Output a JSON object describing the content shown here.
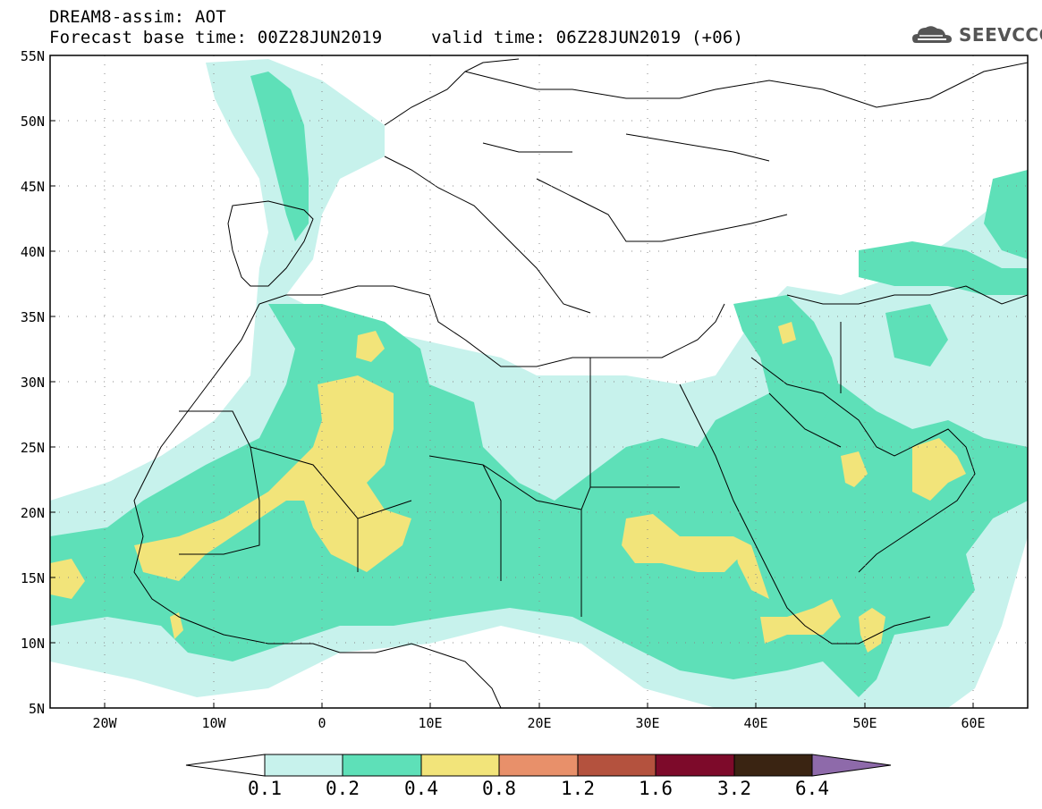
{
  "header": {
    "line1": "DREAM8-assim: AOT",
    "line2": "Forecast base time: 00Z28JUN2019",
    "line3": "valid time: 06Z28JUN2019 (+06)"
  },
  "logo": {
    "text": "SEEVCCC",
    "icon": "cloud-logo-icon",
    "color": "#555555"
  },
  "map": {
    "lat_labels": [
      "55N",
      "50N",
      "45N",
      "40N",
      "35N",
      "30N",
      "25N",
      "20N",
      "15N",
      "10N",
      "5N"
    ],
    "lon_labels": [
      "20W",
      "10W",
      "0",
      "10E",
      "20E",
      "30E",
      "40E",
      "50E",
      "60E"
    ],
    "lat_range": [
      5,
      55
    ],
    "lon_range": [
      -25,
      65
    ],
    "grid": "dotted"
  },
  "colorbar": {
    "labels": [
      "0.1",
      "0.2",
      "0.4",
      "0.8",
      "1.2",
      "1.6",
      "3.2",
      "6.4"
    ],
    "colors": [
      "#c7f2ec",
      "#5ee0b8",
      "#f2e47a",
      "#e8906a",
      "#b4523e",
      "#7d0a2a",
      "#3a2412",
      "#8e6aaa"
    ]
  }
}
